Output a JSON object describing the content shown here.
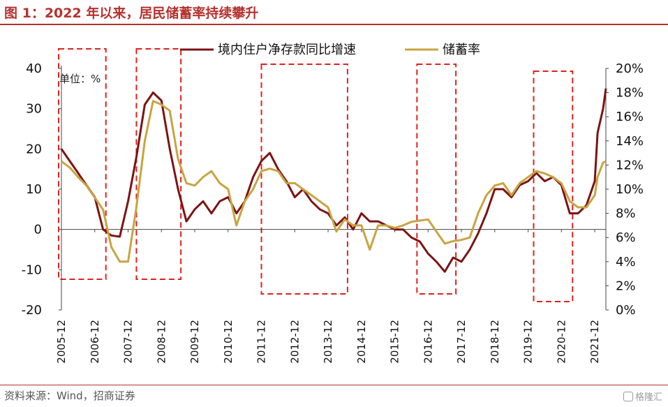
{
  "title": "图 1：2022 年以来，居民储蓄率持续攀升",
  "source": "资料来源：Wind，招商证券",
  "watermark": "格隆汇",
  "chart_data": {
    "type": "line",
    "unit_label": "单位：%",
    "x_ticks": [
      "2005-12",
      "2006-12",
      "2007-12",
      "2008-12",
      "2009-12",
      "2010-12",
      "2011-12",
      "2012-12",
      "2013-12",
      "2014-12",
      "2015-12",
      "2016-12",
      "2017-12",
      "2018-12",
      "2019-12",
      "2020-12",
      "2021-12"
    ],
    "x_range": [
      "2005-12",
      "2022-04"
    ],
    "y_left": {
      "ticks": [
        40,
        30,
        20,
        10,
        0,
        -10,
        -20
      ],
      "range": [
        -20,
        40
      ]
    },
    "y_right": {
      "ticks": [
        "20%",
        "18%",
        "16%",
        "14%",
        "12%",
        "10%",
        "8%",
        "6%",
        "4%",
        "2%",
        "0%"
      ],
      "range": [
        0,
        20
      ]
    },
    "legend_position": "top-center",
    "colors": {
      "deposit": "#7b1414",
      "saving": "#c8a441",
      "dashed_box": "#e02020",
      "axis": "#444444"
    },
    "highlight_periods": [
      [
        "2005-12",
        "2007-03"
      ],
      [
        "2008-04",
        "2009-06"
      ],
      [
        "2012-01",
        "2014-06"
      ],
      [
        "2016-09",
        "2017-09"
      ],
      [
        "2020-03",
        "2021-03"
      ]
    ],
    "series": [
      {
        "name": "境内住户净存款同比增速",
        "axis": "left",
        "points": [
          [
            "2005-12",
            20
          ],
          [
            "2006-03",
            17
          ],
          [
            "2006-06",
            14
          ],
          [
            "2006-09",
            11
          ],
          [
            "2006-12",
            8
          ],
          [
            "2007-03",
            0
          ],
          [
            "2007-06",
            -1.5
          ],
          [
            "2007-09",
            -1.8
          ],
          [
            "2007-12",
            7
          ],
          [
            "2008-03",
            18
          ],
          [
            "2008-06",
            31
          ],
          [
            "2008-09",
            34
          ],
          [
            "2008-12",
            32
          ],
          [
            "2009-03",
            20
          ],
          [
            "2009-06",
            10
          ],
          [
            "2009-09",
            2
          ],
          [
            "2009-12",
            5
          ],
          [
            "2010-03",
            7
          ],
          [
            "2010-06",
            4
          ],
          [
            "2010-09",
            7
          ],
          [
            "2010-12",
            8
          ],
          [
            "2011-03",
            4
          ],
          [
            "2011-06",
            7
          ],
          [
            "2011-09",
            13
          ],
          [
            "2011-12",
            17
          ],
          [
            "2012-03",
            19
          ],
          [
            "2012-06",
            15
          ],
          [
            "2012-09",
            12
          ],
          [
            "2012-12",
            8
          ],
          [
            "2013-03",
            10
          ],
          [
            "2013-06",
            7
          ],
          [
            "2013-09",
            5
          ],
          [
            "2013-12",
            4
          ],
          [
            "2014-03",
            1
          ],
          [
            "2014-06",
            3
          ],
          [
            "2014-09",
            0
          ],
          [
            "2014-12",
            4
          ],
          [
            "2015-03",
            2
          ],
          [
            "2015-06",
            2
          ],
          [
            "2015-09",
            1
          ],
          [
            "2015-12",
            0
          ],
          [
            "2016-03",
            0
          ],
          [
            "2016-06",
            -2
          ],
          [
            "2016-09",
            -3
          ],
          [
            "2016-12",
            -6
          ],
          [
            "2017-03",
            -8
          ],
          [
            "2017-06",
            -10.5
          ],
          [
            "2017-09",
            -7
          ],
          [
            "2017-12",
            -8
          ],
          [
            "2018-03",
            -5
          ],
          [
            "2018-06",
            -1
          ],
          [
            "2018-09",
            4
          ],
          [
            "2018-12",
            10
          ],
          [
            "2019-03",
            10
          ],
          [
            "2019-06",
            8
          ],
          [
            "2019-09",
            11
          ],
          [
            "2019-12",
            12
          ],
          [
            "2020-03",
            14
          ],
          [
            "2020-06",
            12
          ],
          [
            "2020-09",
            13
          ],
          [
            "2020-12",
            11
          ],
          [
            "2021-03",
            4
          ],
          [
            "2021-06",
            4
          ],
          [
            "2021-09",
            6
          ],
          [
            "2021-12",
            12
          ],
          [
            "2022-01",
            24
          ],
          [
            "2022-03",
            30
          ],
          [
            "2022-04",
            35
          ]
        ]
      },
      {
        "name": "储蓄率",
        "axis": "right",
        "points": [
          [
            "2005-12",
            12.3
          ],
          [
            "2006-03",
            11.8
          ],
          [
            "2006-06",
            11
          ],
          [
            "2006-09",
            10.3
          ],
          [
            "2006-12",
            9.3
          ],
          [
            "2007-03",
            8.3
          ],
          [
            "2007-06",
            5.2
          ],
          [
            "2007-09",
            4
          ],
          [
            "2007-12",
            4
          ],
          [
            "2008-03",
            8.5
          ],
          [
            "2008-06",
            14
          ],
          [
            "2008-09",
            17.3
          ],
          [
            "2008-12",
            17
          ],
          [
            "2009-03",
            16.5
          ],
          [
            "2009-06",
            12.5
          ],
          [
            "2009-09",
            10.5
          ],
          [
            "2009-12",
            10.3
          ],
          [
            "2010-03",
            11
          ],
          [
            "2010-06",
            11.5
          ],
          [
            "2010-09",
            10.5
          ],
          [
            "2010-12",
            10
          ],
          [
            "2011-03",
            7
          ],
          [
            "2011-06",
            9
          ],
          [
            "2011-09",
            10
          ],
          [
            "2011-12",
            11.5
          ],
          [
            "2012-03",
            11.7
          ],
          [
            "2012-06",
            11.5
          ],
          [
            "2012-09",
            10.5
          ],
          [
            "2012-12",
            10.5
          ],
          [
            "2013-03",
            10
          ],
          [
            "2013-06",
            9.5
          ],
          [
            "2013-09",
            9
          ],
          [
            "2013-12",
            8.5
          ],
          [
            "2014-03",
            6.5
          ],
          [
            "2014-06",
            7.5
          ],
          [
            "2014-09",
            7
          ],
          [
            "2014-12",
            7
          ],
          [
            "2015-03",
            5
          ],
          [
            "2015-06",
            7
          ],
          [
            "2015-09",
            7
          ],
          [
            "2015-12",
            6.8
          ],
          [
            "2016-03",
            7
          ],
          [
            "2016-06",
            7.3
          ],
          [
            "2016-09",
            7.4
          ],
          [
            "2016-12",
            7.5
          ],
          [
            "2017-03",
            6.5
          ],
          [
            "2017-06",
            5.5
          ],
          [
            "2017-09",
            5.7
          ],
          [
            "2017-12",
            5.8
          ],
          [
            "2018-03",
            6
          ],
          [
            "2018-06",
            8
          ],
          [
            "2018-09",
            9.5
          ],
          [
            "2018-12",
            10.3
          ],
          [
            "2019-03",
            10.5
          ],
          [
            "2019-06",
            9.5
          ],
          [
            "2019-09",
            10.5
          ],
          [
            "2019-12",
            11
          ],
          [
            "2020-03",
            11.5
          ],
          [
            "2020-06",
            11.3
          ],
          [
            "2020-09",
            11
          ],
          [
            "2020-12",
            10.5
          ],
          [
            "2021-03",
            9
          ],
          [
            "2021-06",
            8.5
          ],
          [
            "2021-09",
            8.5
          ],
          [
            "2021-12",
            9.5
          ],
          [
            "2022-01",
            11
          ],
          [
            "2022-03",
            12.2
          ],
          [
            "2022-04",
            12.3
          ]
        ]
      }
    ]
  }
}
